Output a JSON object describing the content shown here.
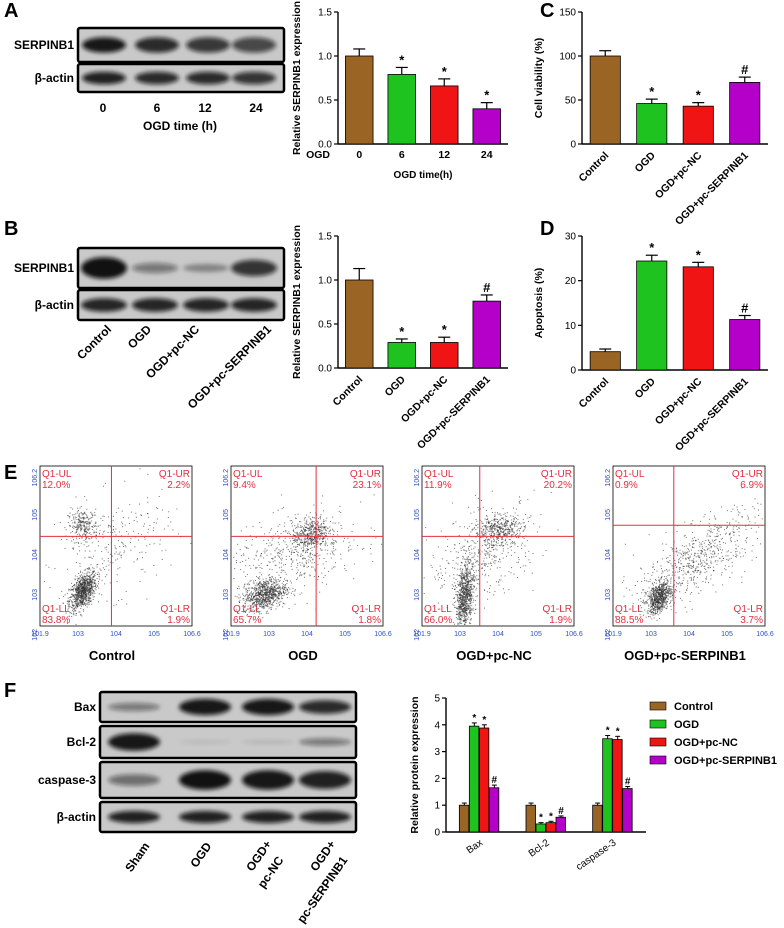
{
  "panels": {
    "A": {
      "letter": "A",
      "blot": {
        "rows": [
          "SERPINB1",
          "β-actin"
        ],
        "lanes": [
          "0",
          "6",
          "12",
          "24"
        ],
        "xlabel": "OGD time (h)"
      }
    },
    "B": {
      "letter": "B",
      "blot": {
        "rows": [
          "SERPINB1",
          "β-actin"
        ],
        "lanes": [
          "Control",
          "OGD",
          "OGD+pc-NC",
          "OGD+pc-SERPINB1"
        ]
      }
    },
    "C": {
      "letter": "C"
    },
    "D": {
      "letter": "D"
    },
    "E": {
      "letter": "E",
      "plots": [
        {
          "title": "Control",
          "UL": "Q1-UL",
          "UL_val": "12.0%",
          "UR": "Q1-UR",
          "UR_val": "2.2%",
          "LL": "Q1-LL",
          "LL_val": "83.8%",
          "LR": "Q1-LR",
          "LR_val": "1.9%"
        },
        {
          "title": "OGD",
          "UL": "Q1-UL",
          "UL_val": "9.4%",
          "UR": "Q1-UR",
          "UR_val": "23.1%",
          "LL": "Q1-LL",
          "LL_val": "65.7%",
          "LR": "Q1-LR",
          "LR_val": "1.8%"
        },
        {
          "title": "OGD+pc-NC",
          "UL": "Q1-UL",
          "UL_val": "11.9%",
          "UR": "Q1-UR",
          "UR_val": "20.2%",
          "LL": "Q1-LL",
          "LL_val": "66.0%",
          "LR": "Q1-LR",
          "LR_val": "1.9%"
        },
        {
          "title": "OGD+pc-SERPINB1",
          "UL": "Q1-UL",
          "UL_val": "0.9%",
          "UR": "Q1-UR",
          "UR_val": "6.9%",
          "LL": "Q1-LL",
          "LL_val": "88.5%",
          "LR": "Q1-LR",
          "LR_val": "3.7%"
        }
      ],
      "axis_ticks_y": [
        "10^2",
        "10^3",
        "10^4",
        "10^5",
        "10^6.2"
      ],
      "axis_ticks_x": [
        "10^1.9",
        "10^3",
        "10^4",
        "10^5",
        "10^6.6"
      ]
    },
    "F": {
      "letter": "F",
      "blot": {
        "rows": [
          "Bax",
          "Bcl-2",
          "caspase-3",
          "β-actin"
        ],
        "lanes": [
          "Sham",
          "OGD",
          "OGD+ pc-NC",
          "OGD+ pc-SERPINB1"
        ]
      }
    }
  },
  "colors": {
    "control": "#9a6424",
    "ogd": "#1fc31f",
    "pcnc": "#f01414",
    "pcserpin": "#b400c8"
  },
  "chart_data": [
    {
      "id": "A",
      "type": "bar",
      "categories": [
        "0",
        "6",
        "12",
        "24"
      ],
      "category_row_label": "OGD",
      "values": [
        1.0,
        0.79,
        0.66,
        0.4
      ],
      "errors": [
        0.08,
        0.08,
        0.08,
        0.07
      ],
      "annotations": [
        "",
        "*",
        "*",
        "*"
      ],
      "xlabel": "OGD time(h)",
      "ylabel": "Relative SERPINB1 expression",
      "ylim": [
        0,
        1.5
      ],
      "yticks": [
        0.0,
        0.5,
        1.0,
        1.5
      ]
    },
    {
      "id": "B",
      "type": "bar",
      "categories": [
        "Control",
        "OGD",
        "OGD+pc-NC",
        "OGD+pc-SERPINB1"
      ],
      "values": [
        1.0,
        0.29,
        0.29,
        0.76
      ],
      "errors": [
        0.13,
        0.04,
        0.06,
        0.07
      ],
      "annotations": [
        "",
        "*",
        "*",
        "#"
      ],
      "xlabel": "",
      "ylabel": "Relative SERPINB1 expression",
      "ylim": [
        0,
        1.5
      ],
      "yticks": [
        0.0,
        0.5,
        1.0,
        1.5
      ]
    },
    {
      "id": "C",
      "type": "bar",
      "categories": [
        "Control",
        "OGD",
        "OGD+pc-NC",
        "OGD+pc-SERPINB1"
      ],
      "values": [
        100,
        46,
        43,
        70
      ],
      "errors": [
        6,
        5,
        4,
        6
      ],
      "annotations": [
        "",
        "*",
        "*",
        "#"
      ],
      "xlabel": "",
      "ylabel": "Cell viability (%)",
      "ylim": [
        0,
        150
      ],
      "yticks": [
        0,
        50,
        100,
        150
      ]
    },
    {
      "id": "D",
      "type": "bar",
      "categories": [
        "Control",
        "OGD",
        "OGD+pc-NC",
        "OGD+pc-SERPINB1"
      ],
      "values": [
        4.1,
        24.4,
        23.1,
        11.3
      ],
      "errors": [
        0.6,
        1.3,
        1.0,
        0.9
      ],
      "annotations": [
        "",
        "*",
        "*",
        "#"
      ],
      "xlabel": "",
      "ylabel": "Apoptosis (%)",
      "ylim": [
        0,
        30
      ],
      "yticks": [
        0,
        10,
        20,
        30
      ]
    },
    {
      "id": "F",
      "type": "bar",
      "categories": [
        "Bax",
        "Bcl-2",
        "caspase-3"
      ],
      "series": [
        {
          "name": "Control",
          "values": [
            1.0,
            1.0,
            1.0
          ],
          "errors": [
            0.08,
            0.08,
            0.08
          ],
          "annotations": [
            "",
            "",
            ""
          ]
        },
        {
          "name": "OGD",
          "values": [
            3.95,
            0.3,
            3.48
          ],
          "errors": [
            0.12,
            0.05,
            0.12
          ],
          "annotations": [
            "*",
            "*",
            "*"
          ]
        },
        {
          "name": "OGD+pc-NC",
          "values": [
            3.88,
            0.35,
            3.45
          ],
          "errors": [
            0.12,
            0.05,
            0.12
          ],
          "annotations": [
            "*",
            "*",
            "*"
          ]
        },
        {
          "name": "OGD+pc-SERPINB1",
          "values": [
            1.65,
            0.55,
            1.62
          ],
          "errors": [
            0.1,
            0.05,
            0.08
          ],
          "annotations": [
            "#",
            "#",
            "#"
          ]
        }
      ],
      "xlabel": "",
      "ylabel": "Relative protein expression",
      "ylim": [
        0,
        5
      ],
      "yticks": [
        0,
        1,
        2,
        3,
        4,
        5
      ],
      "legend": "top-right"
    }
  ]
}
